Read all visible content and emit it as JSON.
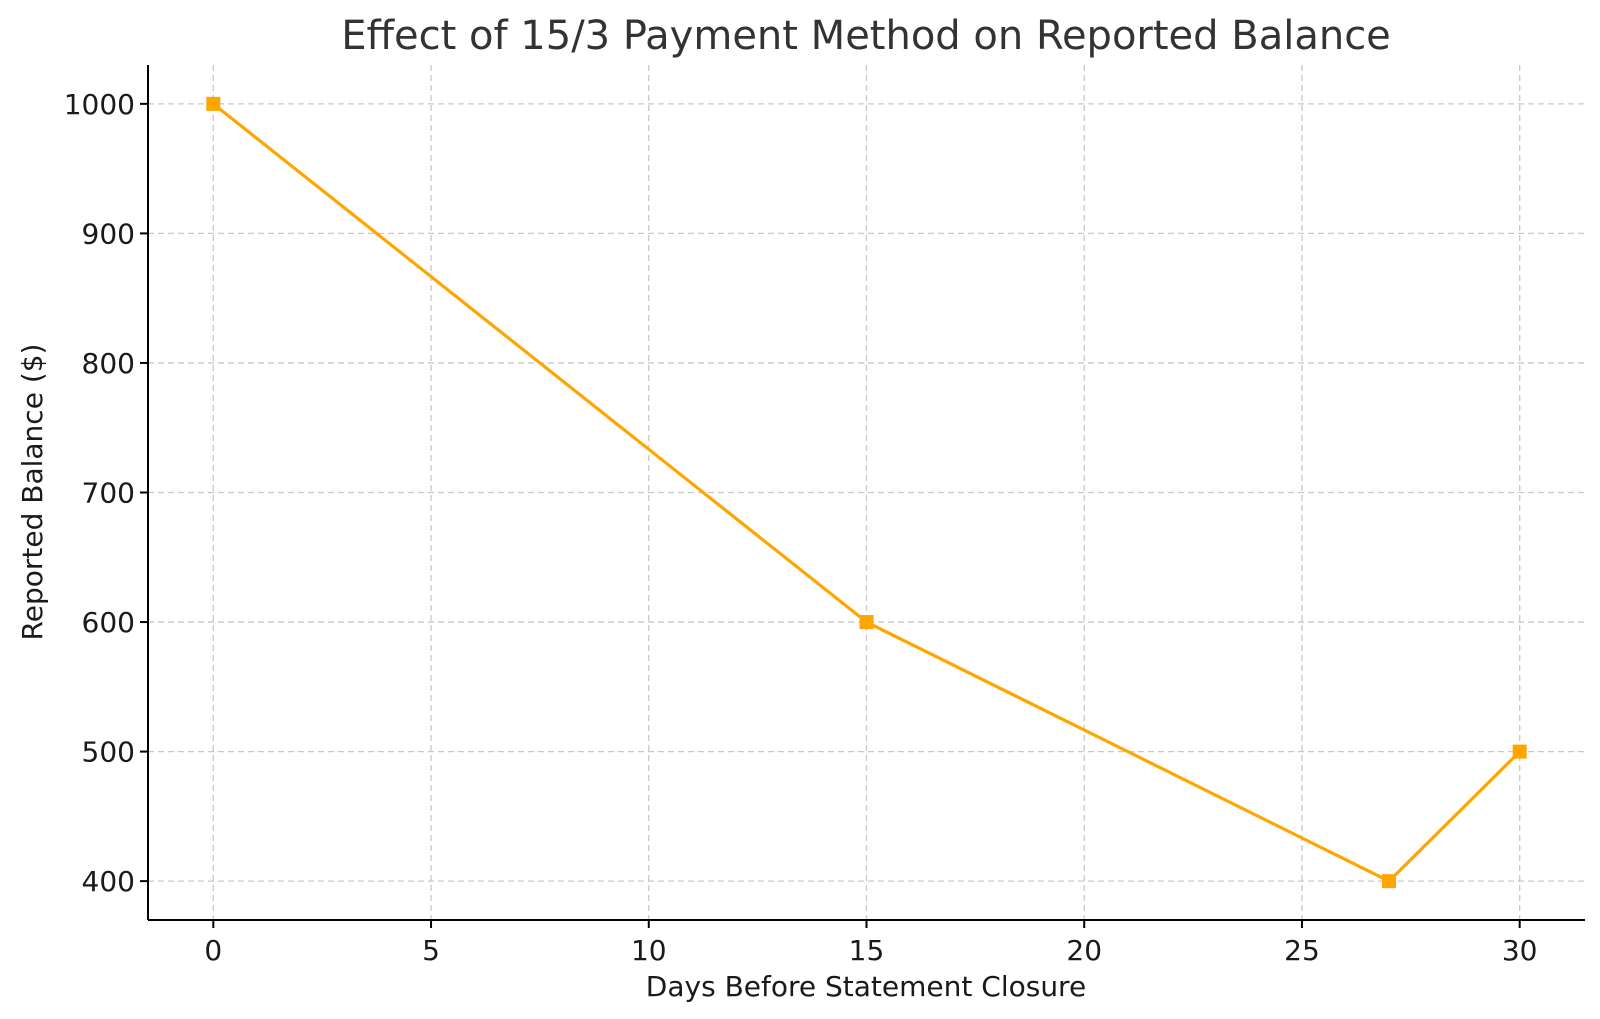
{
  "chart_data": {
    "type": "line",
    "title": "Effect of 15/3 Payment Method on Reported Balance",
    "xlabel": "Days Before Statement Closure",
    "ylabel": "Reported Balance ($)",
    "x": [
      0,
      15,
      27,
      30
    ],
    "series": [
      {
        "values": [
          1000,
          600,
          400,
          500
        ],
        "color": "#FFA500",
        "marker": "square"
      }
    ],
    "xlim": [
      -1.5,
      31.5
    ],
    "ylim": [
      370,
      1030
    ],
    "xticks": [
      0,
      5,
      10,
      15,
      20,
      25,
      30
    ],
    "yticks": [
      400,
      500,
      600,
      700,
      800,
      900,
      1000
    ],
    "xtick_labels": [
      "0",
      "5",
      "10",
      "15",
      "20",
      "25",
      "30"
    ],
    "ytick_labels": [
      "400",
      "500",
      "600",
      "700",
      "800",
      "900",
      "1000"
    ],
    "grid": true,
    "legend": "none"
  }
}
